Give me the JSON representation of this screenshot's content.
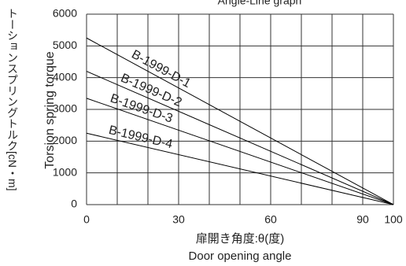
{
  "chart_data": {
    "type": "line",
    "title": "Angle-Line graph",
    "x_label": "扉開き角度:θ(度)",
    "x_label_en": "Door opening angle",
    "y_label": "Torsion spring torque",
    "y_label_ja": "トーションスプリングトルク[cN・m]",
    "x": [
      0,
      100
    ],
    "series": [
      {
        "name": "B-1999-D-1",
        "color": "#000000",
        "values": [
          5250,
          0
        ]
      },
      {
        "name": "B-1999-D-2",
        "color": "#000000",
        "values": [
          4200,
          0
        ]
      },
      {
        "name": "B-1999-D-3",
        "color": "#000000",
        "values": [
          3350,
          0
        ]
      },
      {
        "name": "B-1999-D-4",
        "color": "#000000",
        "values": [
          2250,
          0
        ]
      }
    ],
    "xlim": [
      0,
      100
    ],
    "xticks": [
      0,
      30,
      60,
      90,
      100
    ],
    "xgrid": [
      0,
      10,
      20,
      30,
      40,
      50,
      60,
      70,
      80,
      90,
      100
    ],
    "ylim": [
      0,
      6000
    ],
    "yticks": [
      0,
      1000,
      2000,
      3000,
      4000,
      5000,
      6000
    ],
    "grid": true
  }
}
